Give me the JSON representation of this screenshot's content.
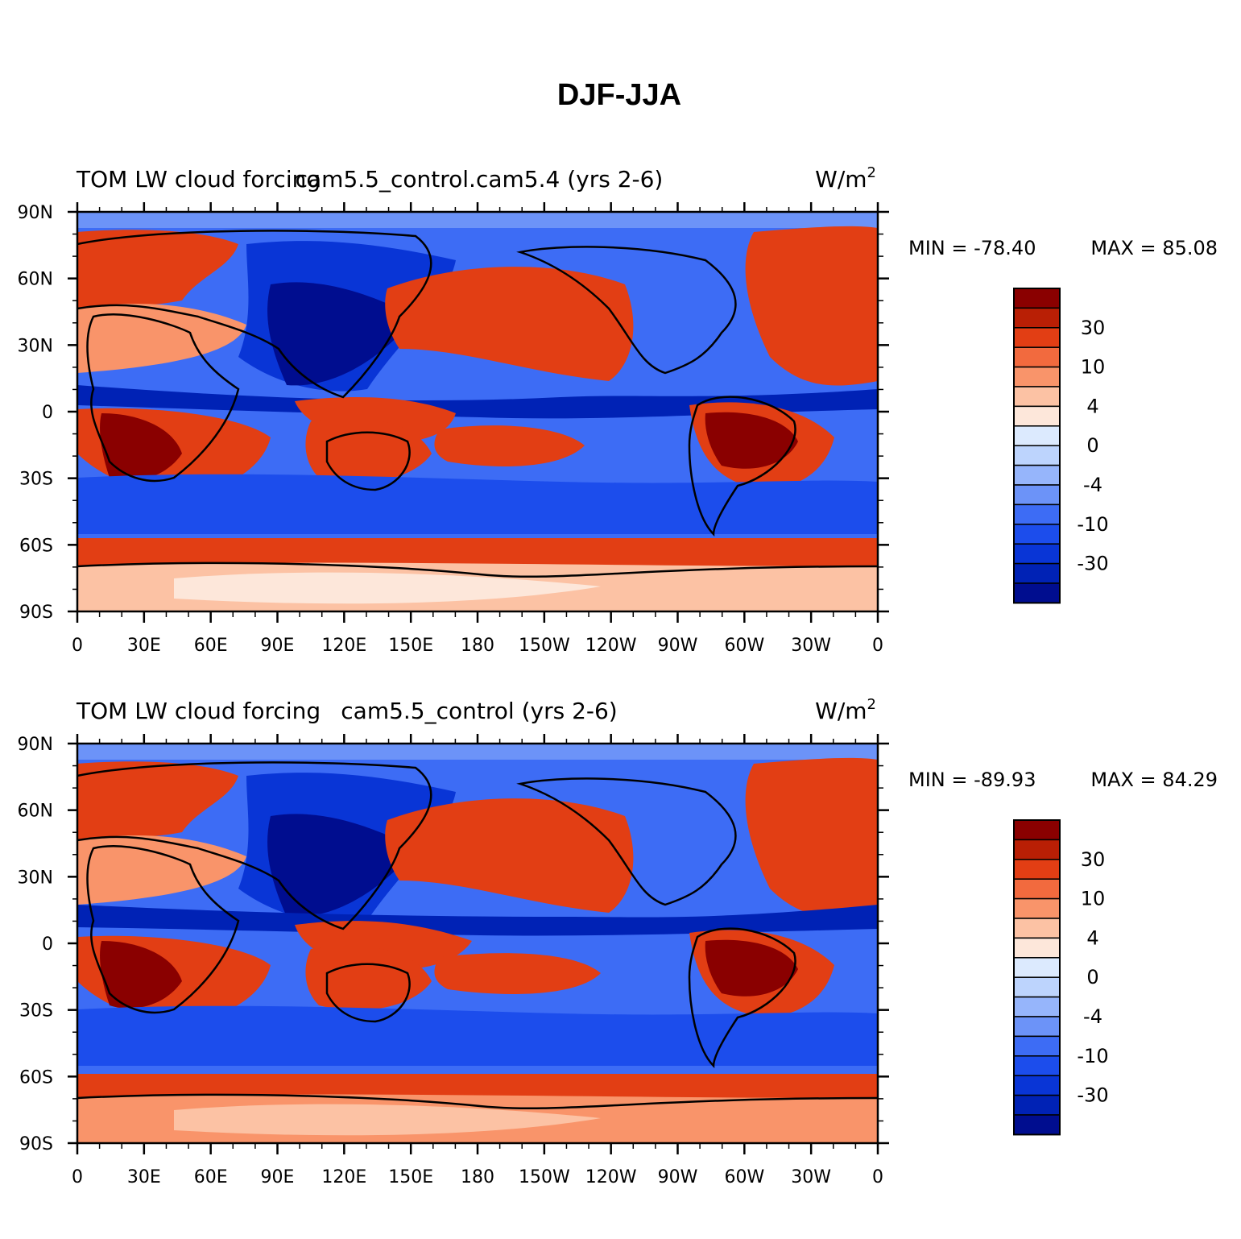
{
  "figure": {
    "title": "DJF-JJA"
  },
  "colors": {
    "frame": "#000000",
    "levels": [
      "#000d8f",
      "#0022b5",
      "#0935d6",
      "#1c4dec",
      "#3d6cf5",
      "#6c93f8",
      "#96b5fb",
      "#bdd4fd",
      "#dceafe",
      "#fde7da",
      "#fcc2a4",
      "#f9946a",
      "#f26a3e",
      "#e23e14",
      "#b91f05",
      "#8a0000"
    ]
  },
  "axes": {
    "lat_ticks": [
      "90N",
      "60N",
      "30N",
      "0",
      "30S",
      "60S",
      "90S"
    ],
    "lon_ticks": [
      "0",
      "30E",
      "60E",
      "90E",
      "120E",
      "150E",
      "180",
      "150W",
      "120W",
      "90W",
      "60W",
      "30W",
      "0"
    ]
  },
  "panels": [
    {
      "left_label": "TOM LW cloud forcing",
      "center_label": "cam5.5_control.cam5.4 (yrs 2-6)",
      "units": "W/m",
      "units_sup": "2",
      "min_label": "MIN = -78.40",
      "max_label": "MAX =  85.08",
      "min_value": -78.4,
      "max_value": 85.08
    },
    {
      "left_label": "TOM LW cloud forcing",
      "center_label": "cam5.5_control (yrs 2-6)",
      "units": "W/m",
      "units_sup": "2",
      "min_label": "MIN = -89.93",
      "max_label": "MAX =  84.29",
      "min_value": -89.93,
      "max_value": 84.29
    }
  ],
  "colorbar": {
    "labels": [
      "30",
      "10",
      "4",
      "0",
      "-4",
      "-10",
      "-30"
    ]
  }
}
